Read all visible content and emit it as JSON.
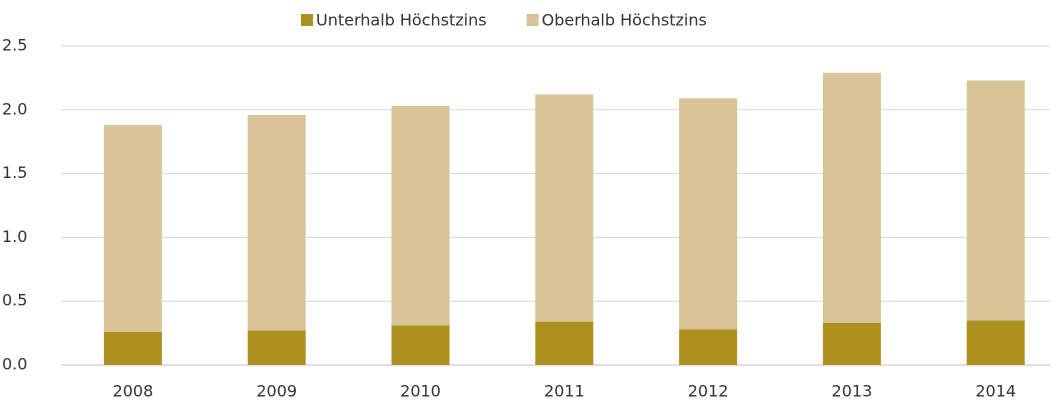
{
  "chart_data": {
    "type": "stacked_bar",
    "categories": [
      "2008",
      "2009",
      "2010",
      "2011",
      "2012",
      "2013",
      "2014"
    ],
    "series": [
      {
        "name": "Unterhalb Höchstzins",
        "color": "#ae9020",
        "values": [
          0.26,
          0.27,
          0.31,
          0.34,
          0.28,
          0.33,
          0.35
        ]
      },
      {
        "name": "Oberhalb Höchstzins",
        "color": "#d8c497",
        "values": [
          1.62,
          1.69,
          1.72,
          1.78,
          1.81,
          1.96,
          1.88
        ]
      }
    ],
    "ylim": [
      0,
      2.5
    ],
    "yticks": [
      {
        "value": 0,
        "label": "0.0"
      },
      0.5,
      {
        "value": 1,
        "label": "1.0"
      },
      1.5,
      {
        "value": 2,
        "label": "2.0"
      },
      2.5
    ],
    "grid": true,
    "legend": "top"
  }
}
